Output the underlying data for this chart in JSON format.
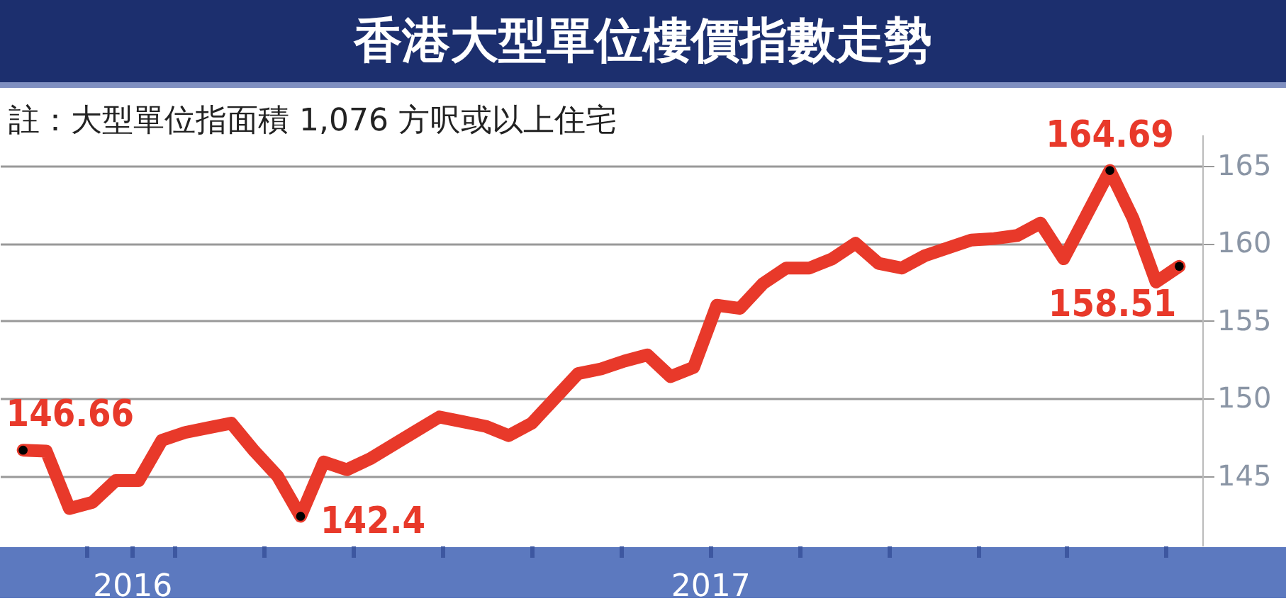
{
  "chart_data": {
    "type": "line",
    "title": "香港大型單位樓價指數走勢",
    "subtitle": "註：大型單位指面積 1,076 方呎或以上住宅",
    "x": [
      "2016-10-20",
      "2016-10-27",
      "2016-11-03",
      "2016-11-10",
      "2016-11-17",
      "2016-11-24",
      "2016-12-01",
      "2016-12-08",
      "2016-12-15",
      "2016-12-22",
      "2016-12-29",
      "2017-01-05",
      "2017-01-12",
      "2017-01-19",
      "2017-01-26",
      "2017-02-02",
      "2017-02-09",
      "2017-02-16",
      "2017-02-23",
      "2017-03-02",
      "2017-03-09",
      "2017-03-16",
      "2017-03-23",
      "2017-03-30",
      "2017-04-06",
      "2017-04-13",
      "2017-04-20",
      "2017-04-27",
      "2017-05-04",
      "2017-05-11",
      "2017-05-18",
      "2017-05-25",
      "2017-06-01",
      "2017-06-08",
      "2017-06-15",
      "2017-06-22",
      "2017-06-29",
      "2017-07-06",
      "2017-07-13",
      "2017-07-20",
      "2017-07-27",
      "2017-08-03",
      "2017-08-10",
      "2017-08-17",
      "2017-08-24",
      "2017-08-31",
      "2017-09-14",
      "2017-09-21",
      "2017-09-28",
      "2017-10-05"
    ],
    "series": [
      {
        "color": "#e8392a",
        "values": [
          146.66,
          146.6,
          142.9,
          143.3,
          144.7,
          144.7,
          147.3,
          147.8,
          148.1,
          148.4,
          146.6,
          145.0,
          142.4,
          145.9,
          145.4,
          146.1,
          147.0,
          147.9,
          148.8,
          148.5,
          148.2,
          147.6,
          148.4,
          150.0,
          151.6,
          151.9,
          152.4,
          152.8,
          151.4,
          152.0,
          156.0,
          155.8,
          157.4,
          158.4,
          158.4,
          159.0,
          160.0,
          158.7,
          158.4,
          159.2,
          159.7,
          160.2,
          160.3,
          160.5,
          161.3,
          159.0,
          164.69,
          161.6,
          157.5,
          158.51
        ],
        "value_labels": [
          "146.66",
          null,
          null,
          null,
          null,
          null,
          null,
          null,
          null,
          null,
          null,
          null,
          "142.4",
          null,
          null,
          null,
          null,
          null,
          null,
          null,
          null,
          null,
          null,
          null,
          null,
          null,
          null,
          null,
          null,
          null,
          null,
          null,
          null,
          null,
          null,
          null,
          null,
          null,
          null,
          null,
          null,
          null,
          null,
          null,
          null,
          null,
          "164.69",
          null,
          null,
          "158.51"
        ]
      }
    ],
    "xlim": [
      "2016-10-13",
      "2017-10-12"
    ],
    "xticks": [
      {
        "value": "2016-11-08",
        "label": null
      },
      {
        "value": "2016-11-22",
        "label": "2016"
      },
      {
        "value": "2016-12-05",
        "label": null
      },
      {
        "value": "2017-01-01",
        "label": null
      },
      {
        "value": "2017-01-28",
        "label": null
      },
      {
        "value": "2017-02-24",
        "label": null
      },
      {
        "value": "2017-03-23",
        "label": null
      },
      {
        "value": "2017-04-19",
        "label": null
      },
      {
        "value": "2017-05-16",
        "label": "2017"
      },
      {
        "value": "2017-06-12",
        "label": null
      },
      {
        "value": "2017-07-09",
        "label": null
      },
      {
        "value": "2017-08-05",
        "label": null
      },
      {
        "value": "2017-09-01",
        "label": null
      },
      {
        "value": "2017-10-01",
        "label": null
      }
    ],
    "ylim": [
      140.5,
      167
    ],
    "yticks": [
      145,
      150,
      155,
      160,
      165
    ],
    "grid": "y",
    "line_style": "solid",
    "legend": false
  }
}
